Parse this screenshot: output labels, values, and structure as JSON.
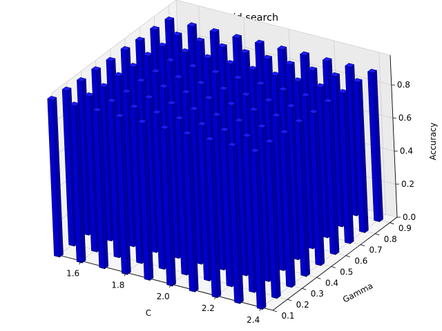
{
  "chart_data": {
    "type": "bar3d",
    "title": "Bar plot for grid search",
    "xlabel": "C",
    "ylabel": "Gamma",
    "zlabel": "Accuracy",
    "x_ticks": [
      "1.6",
      "1.8",
      "2.0",
      "2.2",
      "2.4"
    ],
    "y_ticks": [
      "0.1",
      "0.2",
      "0.3",
      "0.4",
      "0.5",
      "0.6",
      "0.7",
      "0.8",
      "0.9"
    ],
    "z_ticks": [
      "0.0",
      "0.2",
      "0.4",
      "0.6",
      "0.8"
    ],
    "xlim": [
      1.5,
      2.45
    ],
    "ylim": [
      0.1,
      0.95
    ],
    "zlim": [
      0.0,
      0.98
    ],
    "grid": true,
    "bar_color": "#0000cc",
    "bar_edge_color": "#000055",
    "C_values": [
      1.5,
      1.6,
      1.7,
      1.8,
      1.9,
      2.0,
      2.1,
      2.2,
      2.3,
      2.4
    ],
    "gamma_values": [
      0.1,
      0.2,
      0.3,
      0.4,
      0.5,
      0.6,
      0.7,
      0.8,
      0.9
    ],
    "accuracy": [
      [
        0.95,
        0.94,
        0.93,
        0.93,
        0.92,
        0.92,
        0.91,
        0.91,
        0.9
      ],
      [
        0.95,
        0.94,
        0.93,
        0.93,
        0.92,
        0.92,
        0.91,
        0.91,
        0.9
      ],
      [
        0.95,
        0.94,
        0.93,
        0.93,
        0.92,
        0.92,
        0.91,
        0.91,
        0.9
      ],
      [
        0.95,
        0.94,
        0.93,
        0.93,
        0.92,
        0.92,
        0.91,
        0.91,
        0.9
      ],
      [
        0.95,
        0.94,
        0.93,
        0.93,
        0.92,
        0.92,
        0.91,
        0.91,
        0.9
      ],
      [
        0.95,
        0.94,
        0.93,
        0.93,
        0.92,
        0.92,
        0.91,
        0.91,
        0.9
      ],
      [
        0.95,
        0.94,
        0.93,
        0.93,
        0.92,
        0.92,
        0.91,
        0.91,
        0.9
      ],
      [
        0.95,
        0.94,
        0.93,
        0.93,
        0.92,
        0.92,
        0.91,
        0.91,
        0.9
      ],
      [
        0.95,
        0.94,
        0.93,
        0.93,
        0.92,
        0.92,
        0.91,
        0.91,
        0.9
      ],
      [
        0.95,
        0.94,
        0.93,
        0.93,
        0.92,
        0.92,
        0.91,
        0.91,
        0.9
      ]
    ]
  }
}
